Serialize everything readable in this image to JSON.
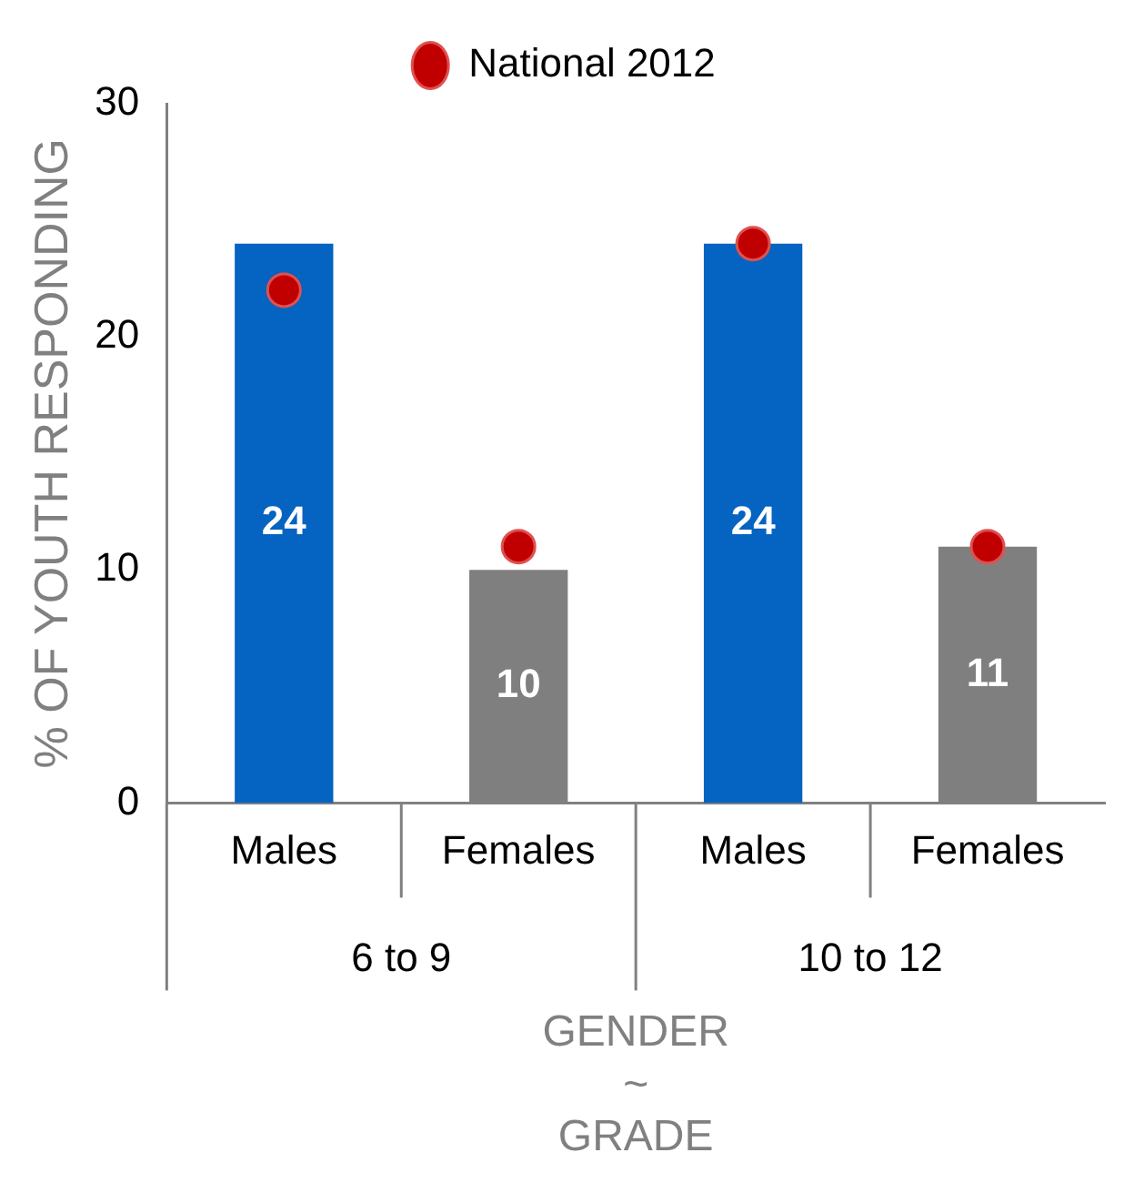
{
  "chart_data": {
    "type": "bar",
    "xlabel": "GENDER\n~\nGRADE",
    "ylabel": "% OF YOUTH RESPONDING",
    "categories": [
      "Males",
      "Females",
      "Males",
      "Females"
    ],
    "series": [
      {
        "colors": [
          "#0563c1",
          "#7f7f7f",
          "#0563c1",
          "#7f7f7f"
        ],
        "values": [
          24,
          10,
          24,
          11
        ],
        "value_labels": [
          "24",
          "10",
          "24",
          "11"
        ]
      },
      {
        "type": "scatter",
        "name": "National 2012",
        "color": "#c00000",
        "values": [
          22,
          11,
          24,
          11
        ]
      }
    ],
    "annotations": [
      "6 to 9",
      "10 to 12"
    ],
    "ylim": [
      0,
      30
    ],
    "yticks": [
      0,
      10,
      20,
      30
    ],
    "grid": false,
    "legend": "top",
    "marker": "circle"
  }
}
